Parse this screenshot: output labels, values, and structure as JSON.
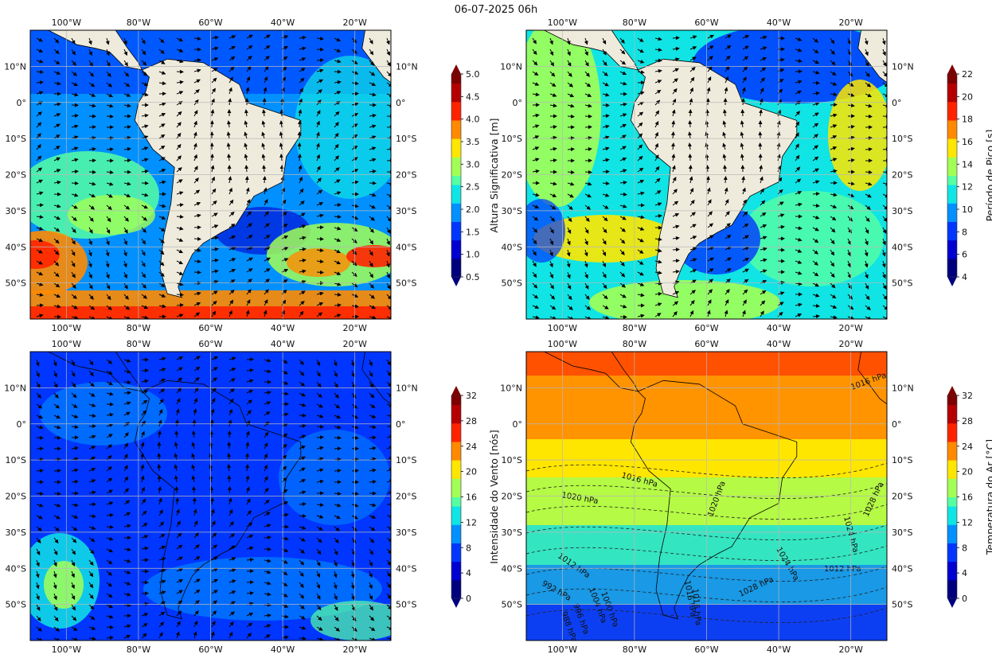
{
  "title": "06-07-2025 06h",
  "lon_ticks": [
    "100°W",
    "80°W",
    "60°W",
    "40°W",
    "20°W"
  ],
  "lat_ticks": [
    "10°N",
    "0°",
    "10°S",
    "20°S",
    "30°S",
    "40°S",
    "50°S"
  ],
  "colors": {
    "land": "#efebdc",
    "jet": [
      "#00007f",
      "#0000d0",
      "#0036ff",
      "#0090ff",
      "#10e4e4",
      "#55ffa2",
      "#a2ff55",
      "#ffe600",
      "#ff8a00",
      "#ff2400",
      "#b40000",
      "#7f0000"
    ]
  },
  "chart_data": [
    {
      "type": "heatmap",
      "panel": "top-left",
      "variable": "Altura Significativa [m]",
      "colorbar_ticks": [
        "0.5",
        "1.0",
        "1.5",
        "2.0",
        "2.5",
        "3.0",
        "3.5",
        "4.0",
        "4.5",
        "5.0"
      ],
      "colorbar_range": [
        0.5,
        5.0
      ],
      "overlay": "direction arrows",
      "grid": true
    },
    {
      "type": "heatmap",
      "panel": "top-right",
      "variable": "Período de Pico [s]",
      "colorbar_ticks": [
        "4",
        "6",
        "8",
        "10",
        "12",
        "14",
        "16",
        "18",
        "20",
        "22"
      ],
      "colorbar_range": [
        4,
        22
      ],
      "overlay": "direction arrows",
      "grid": true
    },
    {
      "type": "heatmap",
      "panel": "bottom-left",
      "variable": "Intensidade do Vento [nós]",
      "colorbar_ticks": [
        "0",
        "4",
        "8",
        "12",
        "16",
        "20",
        "24",
        "28",
        "32"
      ],
      "colorbar_range": [
        0,
        32
      ],
      "overlay": "wind arrows",
      "grid": true
    },
    {
      "type": "heatmap",
      "panel": "bottom-right",
      "variable": "Temperatura do Ar [°C]",
      "colorbar_ticks": [
        "0",
        "4",
        "8",
        "12",
        "16",
        "20",
        "24",
        "28",
        "32"
      ],
      "colorbar_range": [
        0,
        32
      ],
      "overlay": "pressure isobars",
      "contour_labels": [
        "1016 hPa",
        "1020 hPa",
        "1016 hPa",
        "1020 hPa",
        "1024 hPa",
        "1028 hPa",
        "1024 hPa",
        "1012 hPa",
        "1012 hPa",
        "1028 hPa",
        "1016 hPa",
        "1016 hPa",
        "1004 hPa",
        "1000 hPa",
        "996 hPa",
        "992 hPa",
        "988 hPa"
      ],
      "grid": true
    }
  ]
}
